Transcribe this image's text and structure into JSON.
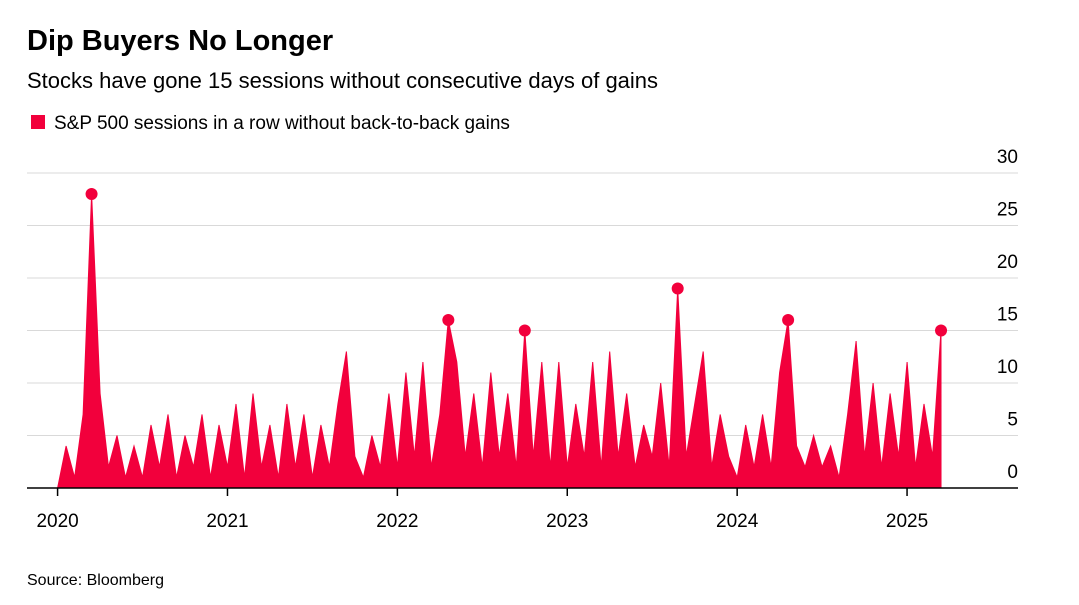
{
  "chart_data": {
    "type": "area",
    "title": "Dip Buyers No Longer",
    "subtitle": "Stocks have gone 15 sessions without consecutive days of gains",
    "source": "Source: Bloomberg",
    "x": [
      2020,
      2020.05,
      2020.1,
      2020.15,
      2020.2,
      2020.25,
      2020.3,
      2020.35,
      2020.4,
      2020.45,
      2020.5,
      2020.55,
      2020.6,
      2020.65,
      2020.7,
      2020.75,
      2020.8,
      2020.85,
      2020.9,
      2020.95,
      2021,
      2021.05,
      2021.1,
      2021.15,
      2021.2,
      2021.25,
      2021.3,
      2021.35,
      2021.4,
      2021.45,
      2021.5,
      2021.55,
      2021.6,
      2021.65,
      2021.7,
      2021.75,
      2021.8,
      2021.85,
      2021.9,
      2021.95,
      2022,
      2022.05,
      2022.1,
      2022.15,
      2022.2,
      2022.25,
      2022.3,
      2022.35,
      2022.4,
      2022.45,
      2022.5,
      2022.55,
      2022.6,
      2022.65,
      2022.7,
      2022.75,
      2022.8,
      2022.85,
      2022.9,
      2022.95,
      2023,
      2023.05,
      2023.1,
      2023.15,
      2023.2,
      2023.25,
      2023.3,
      2023.35,
      2023.4,
      2023.45,
      2023.5,
      2023.55,
      2023.6,
      2023.65,
      2023.7,
      2023.75,
      2023.8,
      2023.85,
      2023.9,
      2023.95,
      2024,
      2024.05,
      2024.1,
      2024.15,
      2024.2,
      2024.25,
      2024.3,
      2024.35,
      2024.4,
      2024.45,
      2024.5,
      2024.55,
      2024.6,
      2024.65,
      2024.7,
      2024.75,
      2024.8,
      2024.85,
      2024.9,
      2024.95,
      2025,
      2025.05,
      2025.1,
      2025.15,
      2025.2
    ],
    "series": [
      {
        "name": "S&P 500 sessions in a row without back-to-back gains",
        "color": "#f2003c",
        "values": [
          0,
          4,
          1,
          7,
          28,
          9,
          2,
          5,
          1,
          4,
          1,
          6,
          2,
          7,
          1,
          5,
          2,
          7,
          1,
          6,
          2,
          8,
          1,
          9,
          2,
          6,
          1,
          8,
          2,
          7,
          1,
          6,
          2,
          8,
          13,
          3,
          1,
          5,
          2,
          9,
          2,
          11,
          3,
          12,
          2,
          7,
          16,
          12,
          3,
          9,
          2,
          11,
          3,
          9,
          2,
          15,
          3,
          12,
          2,
          12,
          2,
          8,
          3,
          12,
          2,
          13,
          3,
          9,
          2,
          6,
          3,
          10,
          2,
          19,
          3,
          8,
          13,
          2,
          7,
          3,
          1,
          6,
          2,
          7,
          2,
          11,
          16,
          4,
          2,
          5,
          2,
          4,
          1,
          7,
          14,
          3,
          10,
          2,
          9,
          3,
          12,
          2,
          8,
          3,
          15
        ]
      }
    ],
    "highlights": {
      "x": [
        2020.2,
        2022.3,
        2022.75,
        2023.65,
        2024.3,
        2025.2
      ],
      "values": [
        28,
        16,
        15,
        19,
        16,
        15
      ]
    },
    "xlim": [
      2019.82,
      2025.5
    ],
    "xticks": [
      2020,
      2021,
      2022,
      2023,
      2024,
      2025
    ],
    "ylim": [
      0,
      30
    ],
    "yticks": [
      0,
      5,
      10,
      15,
      20,
      25,
      30
    ],
    "grid": true
  }
}
